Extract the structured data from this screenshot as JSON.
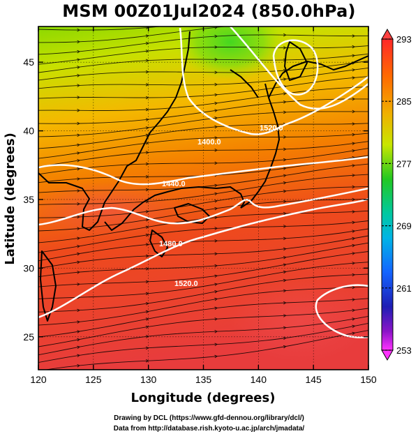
{
  "title": "MSM 00Z01Jul2024 (850.0hPa)",
  "map": {
    "lon_range": [
      120,
      150
    ],
    "lat_range": [
      22.6,
      47.6
    ],
    "x_ticks": [
      "120",
      "125",
      "130",
      "135",
      "140",
      "145",
      "150"
    ],
    "y_ticks": [
      "25",
      "30",
      "35",
      "40",
      "45"
    ],
    "x_label": "Longitude (degrees)",
    "y_label": "Latitude  (degrees)",
    "grid": true,
    "contour_labels": [
      "1400.0",
      "1440.0",
      "1480.0",
      "1520.0",
      "1520.0"
    ]
  },
  "colorbar": {
    "labels": [
      "293",
      "285",
      "277",
      "269",
      "261",
      "253"
    ],
    "colors": [
      "#ff2020",
      "#ff8c00",
      "#c8e600",
      "#22cc22",
      "#00c8c8",
      "#1464ff",
      "#1e1eb4",
      "#ff32ff"
    ]
  },
  "credits": {
    "line1": "Drawing by DCL (https://www.gfd-dennou.org/library/dcl/)",
    "line2": "Data from http://database.rish.kyoto-u.ac.jp/arch/jmadata/"
  }
}
